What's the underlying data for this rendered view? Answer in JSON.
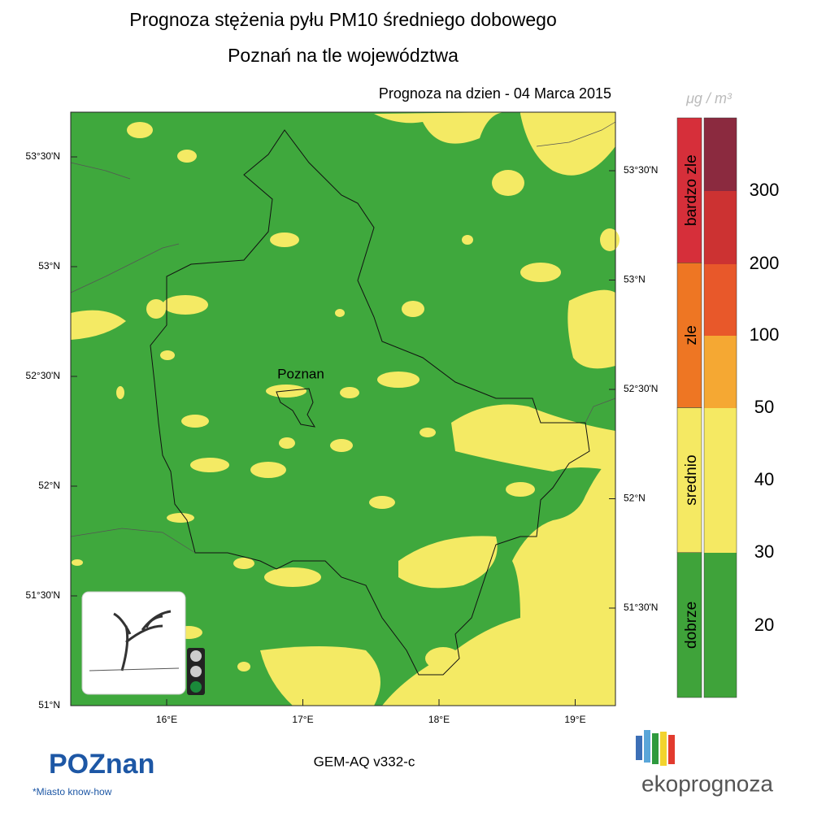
{
  "header": {
    "title": "Prognoza stężenia pyłu PM10 średniego dobowego",
    "subtitle": "Poznań na tle województwa",
    "date": "Prognoza na dzien -  04 Marca 2015"
  },
  "map": {
    "left_ticks": [
      "53°30'N",
      "53°N",
      "52°30'N",
      "52°N",
      "51°30'N",
      "51°N"
    ],
    "right_ticks": [
      "53°30'N",
      "53°N",
      "52°30'N",
      "52°N",
      "51°30'N"
    ],
    "bottom_ticks": [
      "16°E",
      "17°E",
      "18°E",
      "19°E"
    ],
    "city": "Poznan"
  },
  "legend": {
    "unit": "μg / m³",
    "categories": [
      {
        "label": "bardzo zle",
        "color": "#d62f3a"
      },
      {
        "label": "zle",
        "color": "#ee7623"
      },
      {
        "label": "srednio",
        "color": "#f5e963"
      },
      {
        "label": "dobrze",
        "color": "#3fa33a"
      }
    ],
    "levels": [
      {
        "value": 300,
        "color": "#8b2a3f"
      },
      {
        "value": 200,
        "color": "#cc3232"
      },
      {
        "value": 100,
        "color": "#e8582a"
      },
      {
        "value": 50,
        "color": "#f5a833"
      },
      {
        "value": 40,
        "color": "#f5e963"
      },
      {
        "value": 30,
        "color": "#f5e963"
      },
      {
        "value": 20,
        "color": "#3fa33a"
      }
    ]
  },
  "footer": {
    "model": "GEM-AQ v332-c",
    "logo_left": "POZnan",
    "logo_left_tagline": "*Miasto know-how",
    "logo_right": "ekoprognoza"
  }
}
